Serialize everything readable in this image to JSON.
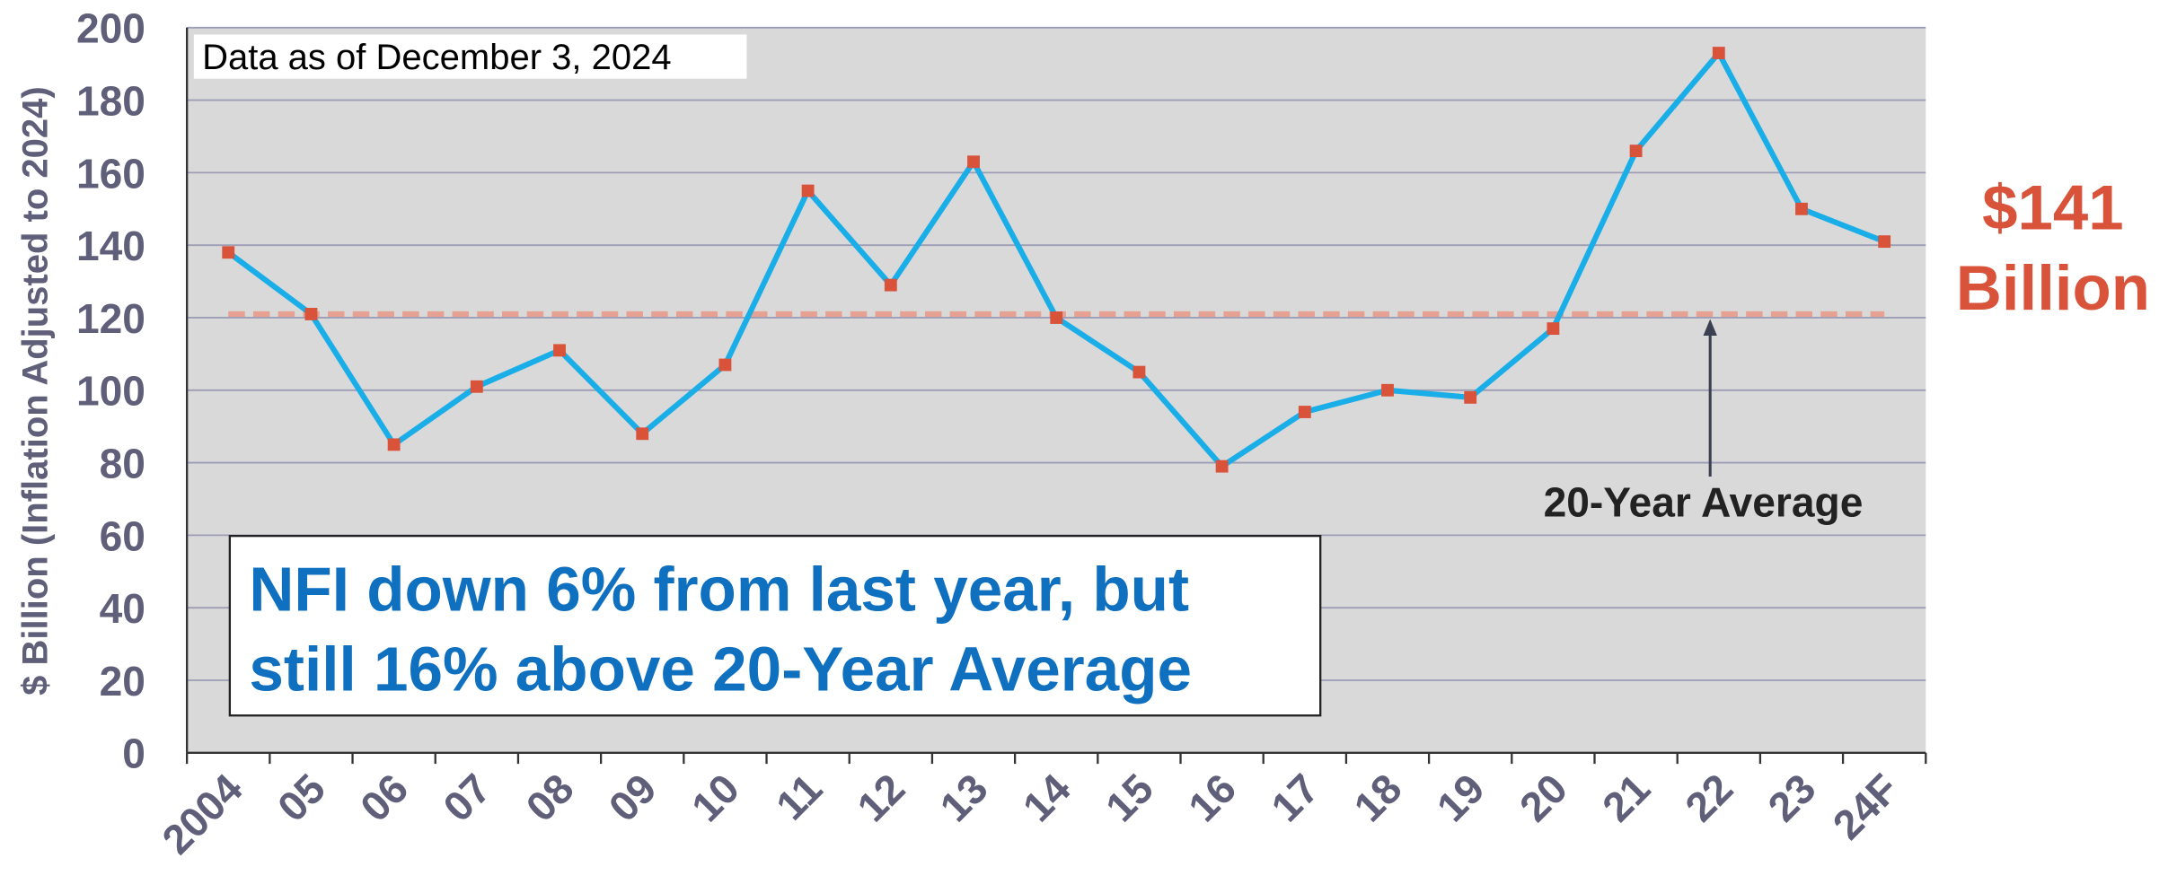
{
  "chart_data": {
    "type": "line",
    "ylabel": "$ Billion (Inflation Adjusted to 2024)",
    "categories": [
      "2004",
      "05",
      "06",
      "07",
      "08",
      "09",
      "10",
      "11",
      "12",
      "13",
      "14",
      "15",
      "16",
      "17",
      "18",
      "19",
      "20",
      "21",
      "22",
      "23",
      "24F"
    ],
    "values": [
      138,
      121,
      85,
      101,
      111,
      88,
      107,
      155,
      129,
      163,
      120,
      105,
      79,
      94,
      100,
      98,
      117,
      166,
      193,
      150,
      141
    ],
    "color": "#1aaee8",
    "marker_color": "#d9533b",
    "average": 121,
    "average_color": "#e6a193",
    "average_label": "20-Year Average",
    "data_note": "Data as of December 3, 2024",
    "callout": [
      "NFI down 6% from last year, but",
      "still 16% above 20-Year Average"
    ],
    "value_callout": [
      "$141",
      "Billion"
    ],
    "ylim": [
      0,
      200
    ],
    "yticks": [
      0,
      20,
      40,
      60,
      80,
      100,
      120,
      140,
      160,
      180,
      200
    ],
    "grid": true
  }
}
